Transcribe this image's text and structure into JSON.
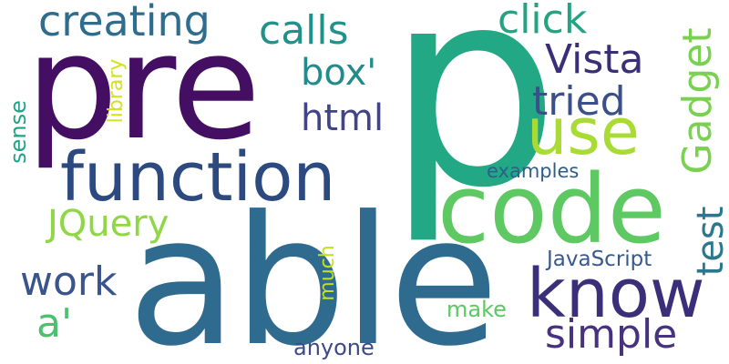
{
  "words": {
    "p": {
      "text": "p",
      "color": "#22a884"
    },
    "pre": {
      "text": "pre",
      "color": "#440f63"
    },
    "able": {
      "text": "able",
      "color": "#2f6b8e"
    },
    "code": {
      "text": "code",
      "color": "#5ec962"
    },
    "function": {
      "text": "function",
      "color": "#2c4a7f"
    },
    "know": {
      "text": "know",
      "color": "#3b2f7a"
    },
    "use": {
      "text": "use",
      "color": "#a8db34"
    },
    "creating": {
      "text": "creating",
      "color": "#2e6d8e"
    },
    "calls": {
      "text": "calls",
      "color": "#21918c"
    },
    "click": {
      "text": "click",
      "color": "#25a284"
    },
    "vista": {
      "text": "Vista",
      "color": "#3a2f76"
    },
    "tried": {
      "text": "tried",
      "color": "#3b4f8a"
    },
    "box": {
      "text": "box'",
      "color": "#238a8d"
    },
    "html": {
      "text": "html",
      "color": "#414487"
    },
    "gadget": {
      "text": "Gadget",
      "color": "#7ad151"
    },
    "test": {
      "text": "test",
      "color": "#2a788e"
    },
    "jquery": {
      "text": "JQuery",
      "color": "#8fd744"
    },
    "work": {
      "text": "work",
      "color": "#3a548c"
    },
    "a": {
      "text": "a'",
      "color": "#4ac16d"
    },
    "simple": {
      "text": "simple",
      "color": "#46327e"
    },
    "javascript": {
      "text": "JavaScript",
      "color": "#38598c"
    },
    "examples": {
      "text": "examples",
      "color": "#2e5f8a"
    },
    "library": {
      "text": "library",
      "color": "#d2e21b"
    },
    "sense": {
      "text": "sense",
      "color": "#20a386"
    },
    "much": {
      "text": "much",
      "color": "#c5e021"
    },
    "make": {
      "text": "make",
      "color": "#5ac864"
    },
    "anyone": {
      "text": "anyone",
      "color": "#3e4989"
    }
  }
}
